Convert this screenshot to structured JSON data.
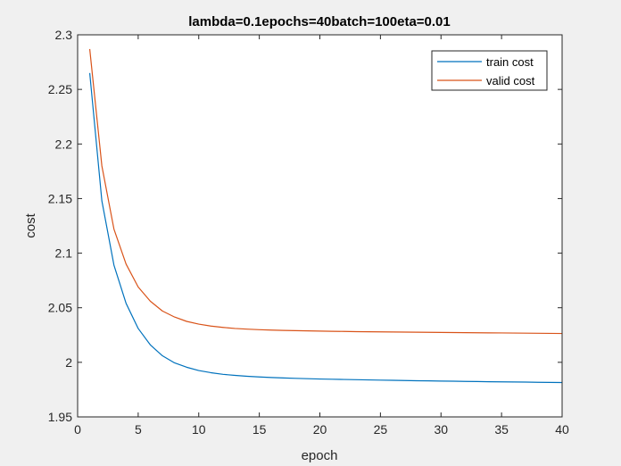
{
  "chart_data": {
    "type": "line",
    "title": "lambda=0.1epochs=40batch=100eta=0.01",
    "xlabel": "epoch",
    "ylabel": "cost",
    "xlim": [
      0,
      40
    ],
    "ylim": [
      1.95,
      2.3
    ],
    "xticks": [
      "0",
      "5",
      "10",
      "15",
      "20",
      "25",
      "30",
      "35",
      "40"
    ],
    "yticks": [
      "1.95",
      "2",
      "2.05",
      "2.1",
      "2.15",
      "2.2",
      "2.25",
      "2.3"
    ],
    "grid": false,
    "legend_position": "top-right",
    "x": [
      1,
      2,
      3,
      4,
      5,
      6,
      7,
      8,
      9,
      10,
      11,
      12,
      13,
      14,
      15,
      16,
      17,
      18,
      19,
      20,
      21,
      22,
      23,
      24,
      25,
      26,
      27,
      28,
      29,
      30,
      31,
      32,
      33,
      34,
      35,
      36,
      37,
      38,
      39,
      40
    ],
    "series": [
      {
        "name": "train cost",
        "color": "#0072BD",
        "values": [
          2.265,
          2.148,
          2.089,
          2.054,
          2.031,
          2.016,
          2.006,
          1.9995,
          1.9955,
          1.9925,
          1.9905,
          1.989,
          1.988,
          1.9872,
          1.9866,
          1.9861,
          1.9857,
          1.9853,
          1.985,
          1.9847,
          1.9845,
          1.9843,
          1.9841,
          1.9839,
          1.9837,
          1.9835,
          1.9833,
          1.9831,
          1.983,
          1.9828,
          1.9827,
          1.9825,
          1.9824,
          1.9822,
          1.9821,
          1.982,
          1.9819,
          1.9817,
          1.9816,
          1.9815
        ]
      },
      {
        "name": "valid cost",
        "color": "#D95319",
        "values": [
          2.287,
          2.18,
          2.122,
          2.09,
          2.069,
          2.056,
          2.047,
          2.0415,
          2.0375,
          2.035,
          2.0332,
          2.032,
          2.031,
          2.0304,
          2.0299,
          2.0295,
          2.0292,
          2.029,
          2.0288,
          2.0286,
          2.0284,
          2.0283,
          2.0281,
          2.028,
          2.0279,
          2.0278,
          2.0277,
          2.0276,
          2.0275,
          2.0274,
          2.0273,
          2.0272,
          2.0271,
          2.027,
          2.0269,
          2.0268,
          2.0267,
          2.0266,
          2.0265,
          2.0264
        ]
      }
    ]
  }
}
